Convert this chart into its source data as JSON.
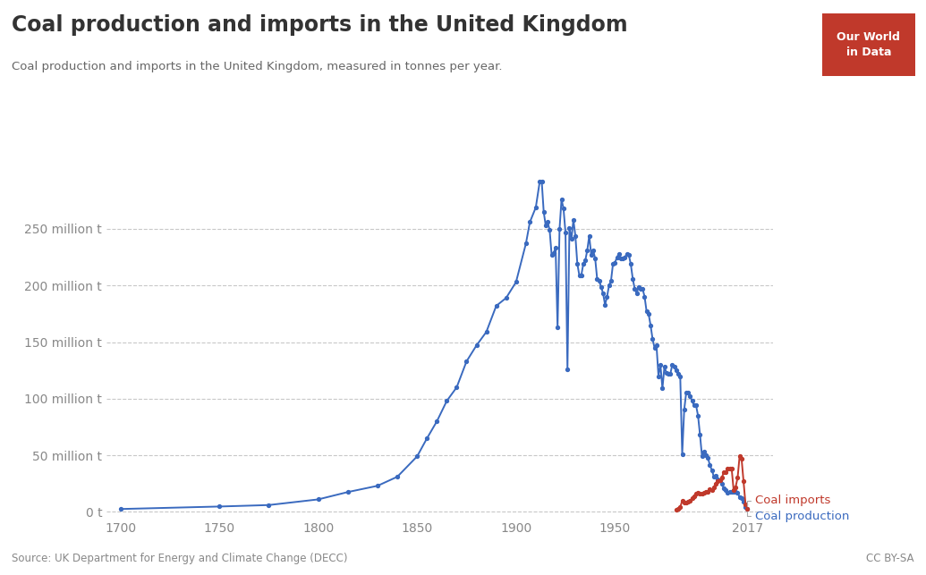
{
  "title": "Coal production and imports in the United Kingdom",
  "subtitle": "Coal production and imports in the United Kingdom, measured in tonnes per year.",
  "source": "Source: UK Department for Energy and Climate Change (DECC)",
  "license": "CC BY-SA",
  "logo_text": "Our World\nin Data",
  "logo_bg": "#c0392b",
  "logo_text_color": "#ffffff",
  "ylabel_ticks": [
    "0 t",
    "50 million t",
    "100 million t",
    "150 million t",
    "200 million t",
    "250 million t"
  ],
  "ytick_values": [
    0,
    50000000,
    100000000,
    150000000,
    200000000,
    250000000
  ],
  "xtick_values": [
    1700,
    1750,
    1800,
    1850,
    1900,
    1950,
    2017
  ],
  "xlim": [
    1693,
    2030
  ],
  "ylim": [
    -5000000,
    310000000
  ],
  "production_color": "#3a6abf",
  "imports_color": "#c0392b",
  "background_color": "#ffffff",
  "grid_color": "#c8c8c8",
  "title_color": "#333333",
  "subtitle_color": "#666666",
  "source_color": "#888888",
  "tick_color": "#888888",
  "legend_imports_color": "#c0392b",
  "legend_production_color": "#3a6abf",
  "production_data": [
    [
      1700,
      2500000
    ],
    [
      1750,
      4700000
    ],
    [
      1775,
      6000000
    ],
    [
      1800,
      11000000
    ],
    [
      1815,
      17500000
    ],
    [
      1830,
      23000000
    ],
    [
      1840,
      31000000
    ],
    [
      1850,
      49000000
    ],
    [
      1855,
      65000000
    ],
    [
      1860,
      80000000
    ],
    [
      1865,
      98000000
    ],
    [
      1870,
      110000000
    ],
    [
      1875,
      133000000
    ],
    [
      1880,
      147000000
    ],
    [
      1885,
      159000000
    ],
    [
      1890,
      182000000
    ],
    [
      1895,
      189000000
    ],
    [
      1900,
      203000000
    ],
    [
      1905,
      237000000
    ],
    [
      1907,
      256000000
    ],
    [
      1910,
      269000000
    ],
    [
      1912,
      292000000
    ],
    [
      1913,
      292000000
    ],
    [
      1914,
      265000000
    ],
    [
      1915,
      253000000
    ],
    [
      1916,
      256000000
    ],
    [
      1917,
      249000000
    ],
    [
      1918,
      227000000
    ],
    [
      1919,
      229000000
    ],
    [
      1920,
      233000000
    ],
    [
      1921,
      163000000
    ],
    [
      1922,
      250000000
    ],
    [
      1923,
      276000000
    ],
    [
      1924,
      268000000
    ],
    [
      1925,
      247000000
    ],
    [
      1926,
      126000000
    ],
    [
      1927,
      251000000
    ],
    [
      1928,
      241000000
    ],
    [
      1929,
      258000000
    ],
    [
      1930,
      244000000
    ],
    [
      1931,
      219000000
    ],
    [
      1932,
      209000000
    ],
    [
      1933,
      209000000
    ],
    [
      1934,
      219000000
    ],
    [
      1935,
      222000000
    ],
    [
      1936,
      231000000
    ],
    [
      1937,
      244000000
    ],
    [
      1938,
      227000000
    ],
    [
      1939,
      231000000
    ],
    [
      1940,
      224000000
    ],
    [
      1941,
      206000000
    ],
    [
      1942,
      204000000
    ],
    [
      1943,
      199000000
    ],
    [
      1944,
      193000000
    ],
    [
      1945,
      183000000
    ],
    [
      1946,
      190000000
    ],
    [
      1947,
      200000000
    ],
    [
      1948,
      204000000
    ],
    [
      1949,
      219000000
    ],
    [
      1950,
      220000000
    ],
    [
      1951,
      225000000
    ],
    [
      1952,
      228000000
    ],
    [
      1953,
      224000000
    ],
    [
      1954,
      224000000
    ],
    [
      1955,
      225000000
    ],
    [
      1956,
      228000000
    ],
    [
      1957,
      227000000
    ],
    [
      1958,
      219000000
    ],
    [
      1959,
      206000000
    ],
    [
      1960,
      197000000
    ],
    [
      1961,
      193000000
    ],
    [
      1962,
      199000000
    ],
    [
      1963,
      197000000
    ],
    [
      1964,
      197000000
    ],
    [
      1965,
      190000000
    ],
    [
      1966,
      177000000
    ],
    [
      1967,
      175000000
    ],
    [
      1968,
      165000000
    ],
    [
      1969,
      153000000
    ],
    [
      1970,
      145000000
    ],
    [
      1971,
      147000000
    ],
    [
      1972,
      120000000
    ],
    [
      1973,
      130000000
    ],
    [
      1974,
      109000000
    ],
    [
      1975,
      128000000
    ],
    [
      1976,
      123000000
    ],
    [
      1977,
      122000000
    ],
    [
      1978,
      122000000
    ],
    [
      1979,
      130000000
    ],
    [
      1980,
      128000000
    ],
    [
      1981,
      125000000
    ],
    [
      1982,
      122000000
    ],
    [
      1983,
      120000000
    ],
    [
      1984,
      51000000
    ],
    [
      1985,
      90000000
    ],
    [
      1986,
      105000000
    ],
    [
      1987,
      105000000
    ],
    [
      1988,
      102000000
    ],
    [
      1989,
      98000000
    ],
    [
      1990,
      94000000
    ],
    [
      1991,
      94000000
    ],
    [
      1992,
      85000000
    ],
    [
      1993,
      68000000
    ],
    [
      1994,
      49000000
    ],
    [
      1995,
      53000000
    ],
    [
      1996,
      50000000
    ],
    [
      1997,
      48000000
    ],
    [
      1998,
      41000000
    ],
    [
      1999,
      37000000
    ],
    [
      2000,
      31000000
    ],
    [
      2001,
      32000000
    ],
    [
      2002,
      29000000
    ],
    [
      2003,
      28000000
    ],
    [
      2004,
      25000000
    ],
    [
      2005,
      21000000
    ],
    [
      2006,
      19000000
    ],
    [
      2007,
      17000000
    ],
    [
      2008,
      18000000
    ],
    [
      2009,
      18000000
    ],
    [
      2010,
      18000000
    ],
    [
      2011,
      18000000
    ],
    [
      2012,
      17000000
    ],
    [
      2013,
      13000000
    ],
    [
      2014,
      12000000
    ],
    [
      2015,
      9000000
    ],
    [
      2016,
      4000000
    ],
    [
      2017,
      3000000
    ]
  ],
  "imports_data": [
    [
      1981,
      2000000
    ],
    [
      1982,
      3000000
    ],
    [
      1983,
      4000000
    ],
    [
      1984,
      10000000
    ],
    [
      1985,
      8000000
    ],
    [
      1986,
      8000000
    ],
    [
      1987,
      9000000
    ],
    [
      1988,
      10000000
    ],
    [
      1989,
      12000000
    ],
    [
      1990,
      14000000
    ],
    [
      1991,
      16000000
    ],
    [
      1992,
      17000000
    ],
    [
      1993,
      16000000
    ],
    [
      1994,
      16000000
    ],
    [
      1995,
      17000000
    ],
    [
      1996,
      18000000
    ],
    [
      1997,
      18000000
    ],
    [
      1998,
      20000000
    ],
    [
      1999,
      19000000
    ],
    [
      2000,
      22000000
    ],
    [
      2001,
      25000000
    ],
    [
      2002,
      27000000
    ],
    [
      2003,
      28000000
    ],
    [
      2004,
      30000000
    ],
    [
      2005,
      35000000
    ],
    [
      2006,
      35000000
    ],
    [
      2007,
      38000000
    ],
    [
      2008,
      38000000
    ],
    [
      2009,
      38000000
    ],
    [
      2010,
      19000000
    ],
    [
      2011,
      22000000
    ],
    [
      2012,
      30000000
    ],
    [
      2013,
      49000000
    ],
    [
      2014,
      47000000
    ],
    [
      2015,
      27000000
    ],
    [
      2016,
      7000000
    ],
    [
      2017,
      3000000
    ]
  ]
}
